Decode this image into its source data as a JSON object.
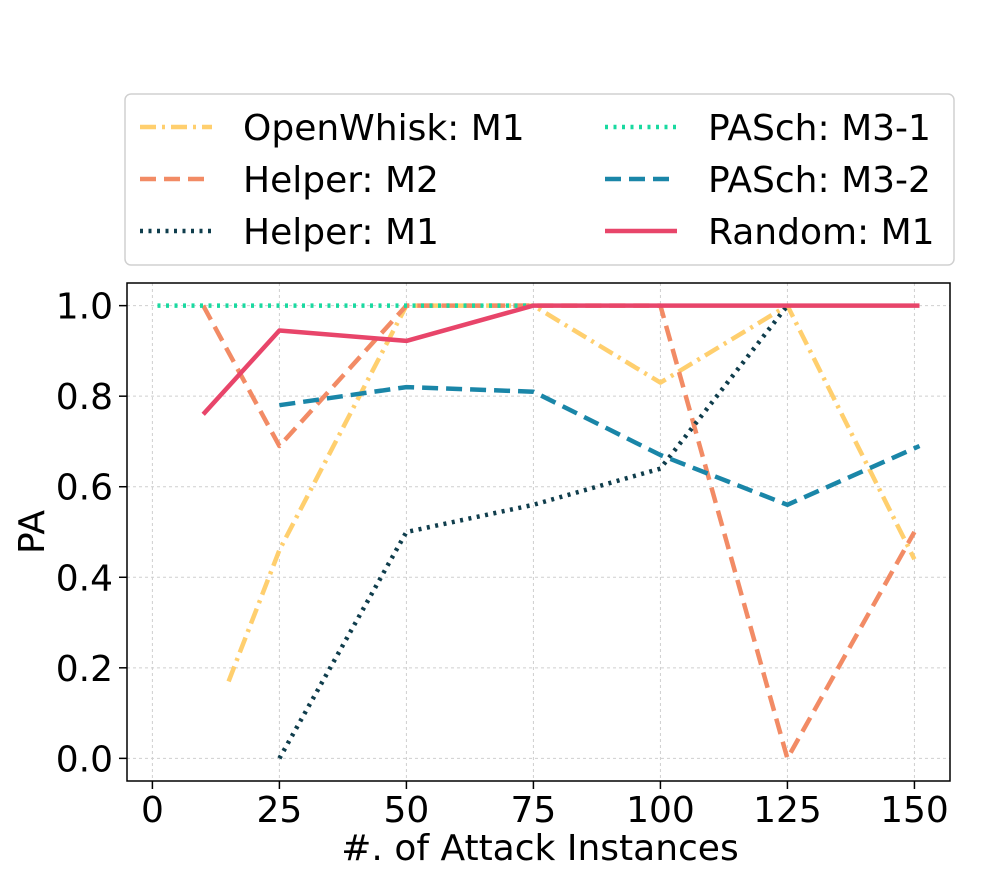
{
  "chart_data": {
    "type": "line",
    "title": "",
    "xlabel": "#. of Attack Instances",
    "ylabel": "PA",
    "xlim": [
      -5,
      157
    ],
    "ylim": [
      -0.05,
      1.05
    ],
    "xticks": [
      "0",
      "25",
      "50",
      "75",
      "100",
      "125",
      "150"
    ],
    "yticks": [
      "0.0",
      "0.2",
      "0.4",
      "0.6",
      "0.8",
      "1.0"
    ],
    "grid": true,
    "legend_position": "top, outside plot",
    "series": [
      {
        "name": "OpenWhisk: M1",
        "color": "#FFCF6E",
        "style": "dashdot",
        "x": [
          15,
          25,
          50,
          75,
          100,
          125,
          150
        ],
        "y": [
          0.17,
          0.46,
          1.0,
          1.0,
          0.83,
          1.0,
          0.44
        ]
      },
      {
        "name": "Helper: M2",
        "color": "#F28B65",
        "style": "dashed",
        "x": [
          10,
          25,
          50,
          75,
          100,
          125,
          150
        ],
        "y": [
          1.0,
          0.69,
          1.0,
          1.0,
          1.0,
          0.0,
          0.5
        ]
      },
      {
        "name": "Helper: M1",
        "color": "#0F3D4C",
        "style": "dotted",
        "x": [
          25,
          50,
          75,
          100,
          125
        ],
        "y": [
          0.0,
          0.5,
          0.56,
          0.64,
          1.0
        ]
      },
      {
        "name": "PASch: M3-1",
        "color": "#19D9A0",
        "style": "dotted",
        "x": [
          1,
          25,
          50,
          75
        ],
        "y": [
          1.0,
          1.0,
          1.0,
          1.0
        ]
      },
      {
        "name": "PASch: M3-2",
        "color": "#1A86A8",
        "style": "dashed",
        "x": [
          25,
          50,
          75,
          100,
          125,
          151
        ],
        "y": [
          0.78,
          0.82,
          0.81,
          0.67,
          0.56,
          0.69
        ]
      },
      {
        "name": "Random: M1",
        "color": "#E8456A",
        "style": "solid",
        "x": [
          10,
          25,
          50,
          75,
          100,
          125,
          151
        ],
        "y": [
          0.76,
          0.945,
          0.922,
          1.0,
          1.0,
          1.0,
          1.0
        ]
      }
    ]
  }
}
